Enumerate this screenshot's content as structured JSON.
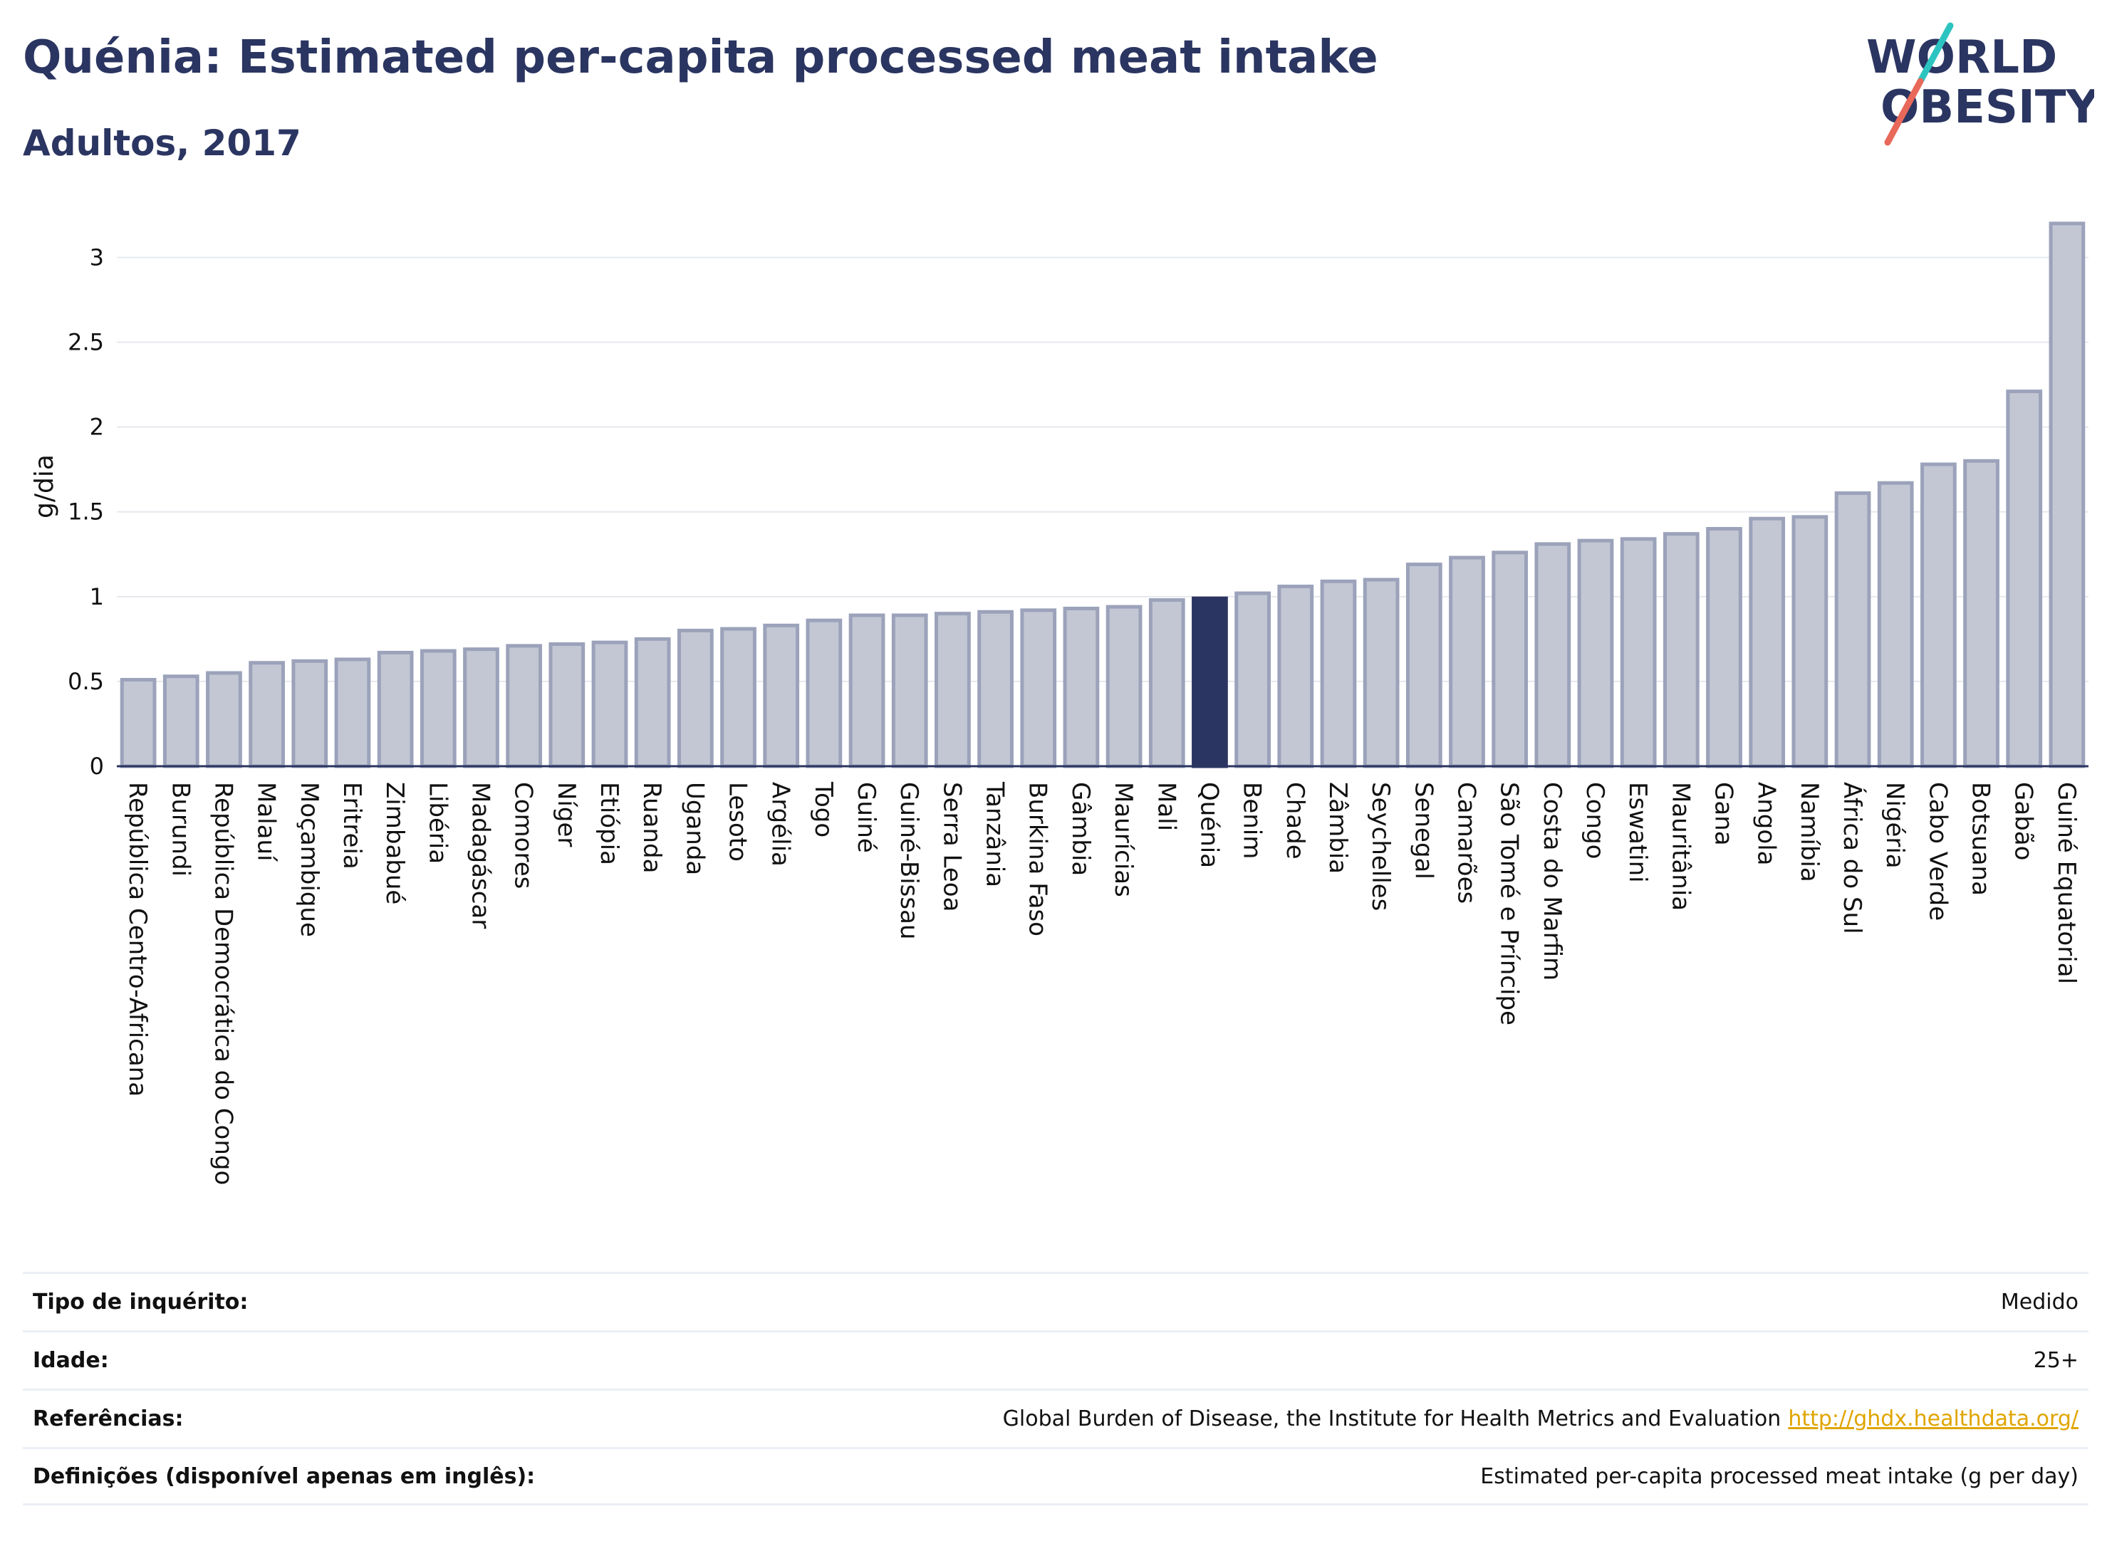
{
  "title": "Quénia: Estimated per-capita processed meat intake",
  "subtitle": "Adultos, 2017",
  "logo": {
    "line1": "WORLD",
    "line2": "OBESITY",
    "colors": {
      "text": "#2b3561",
      "teal": "#2cc4c0",
      "coral": "#e8685a"
    }
  },
  "chart_data": {
    "type": "bar",
    "ylabel": "g/dia",
    "ylim": [
      0,
      3.3
    ],
    "yticks": [
      0,
      0.5,
      1,
      1.5,
      2,
      2.5,
      3
    ],
    "ytick_labels": [
      "0",
      "0.5",
      "1",
      "1.5",
      "2",
      "2.5",
      "3"
    ],
    "grid": true,
    "highlight": "Quénia",
    "colors": {
      "bar": "#c3c7d4",
      "bar_edge": "#9ba2ba",
      "highlight": "#2b3561"
    },
    "categories": [
      "República Centro-Africana",
      "Burundi",
      "República Democrática do Congo",
      "Malauí",
      "Moçambique",
      "Eritreia",
      "Zimbabué",
      "Libéria",
      "Madagáscar",
      "Comores",
      "Níger",
      "Etiópia",
      "Ruanda",
      "Uganda",
      "Lesoto",
      "Argélia",
      "Togo",
      "Guiné",
      "Guiné-Bissau",
      "Serra Leoa",
      "Tanzânia",
      "Burkina Faso",
      "Gâmbia",
      "Maurícias",
      "Mali",
      "Quénia",
      "Benim",
      "Chade",
      "Zâmbia",
      "Seychelles",
      "Senegal",
      "Camarões",
      "São Tomé e Príncipe",
      "Costa do Marfim",
      "Congo",
      "Eswatini",
      "Mauritânia",
      "Gana",
      "Angola",
      "Namíbia",
      "África do Sul",
      "Nigéria",
      "Cabo Verde",
      "Botsuana",
      "Gabão",
      "Guiné Equatorial"
    ],
    "values": [
      0.51,
      0.53,
      0.55,
      0.61,
      0.62,
      0.63,
      0.67,
      0.68,
      0.69,
      0.71,
      0.72,
      0.73,
      0.75,
      0.8,
      0.81,
      0.83,
      0.86,
      0.89,
      0.89,
      0.9,
      0.91,
      0.92,
      0.93,
      0.94,
      0.98,
      0.99,
      1.02,
      1.06,
      1.09,
      1.1,
      1.19,
      1.23,
      1.26,
      1.31,
      1.33,
      1.34,
      1.37,
      1.4,
      1.46,
      1.47,
      1.61,
      1.67,
      1.78,
      1.8,
      2.21,
      3.2
    ]
  },
  "info": [
    {
      "label": "Tipo de inquérito:",
      "value": "Medido"
    },
    {
      "label": "Idade:",
      "value": "25+"
    },
    {
      "label": "Referências:",
      "value": "Global Burden of Disease, the Institute for Health Metrics and Evaluation",
      "link": "http://ghdx.healthdata.org/"
    },
    {
      "label": "Definições (disponível apenas em inglês):",
      "value": "Estimated per-capita processed meat intake (g per day)"
    }
  ]
}
